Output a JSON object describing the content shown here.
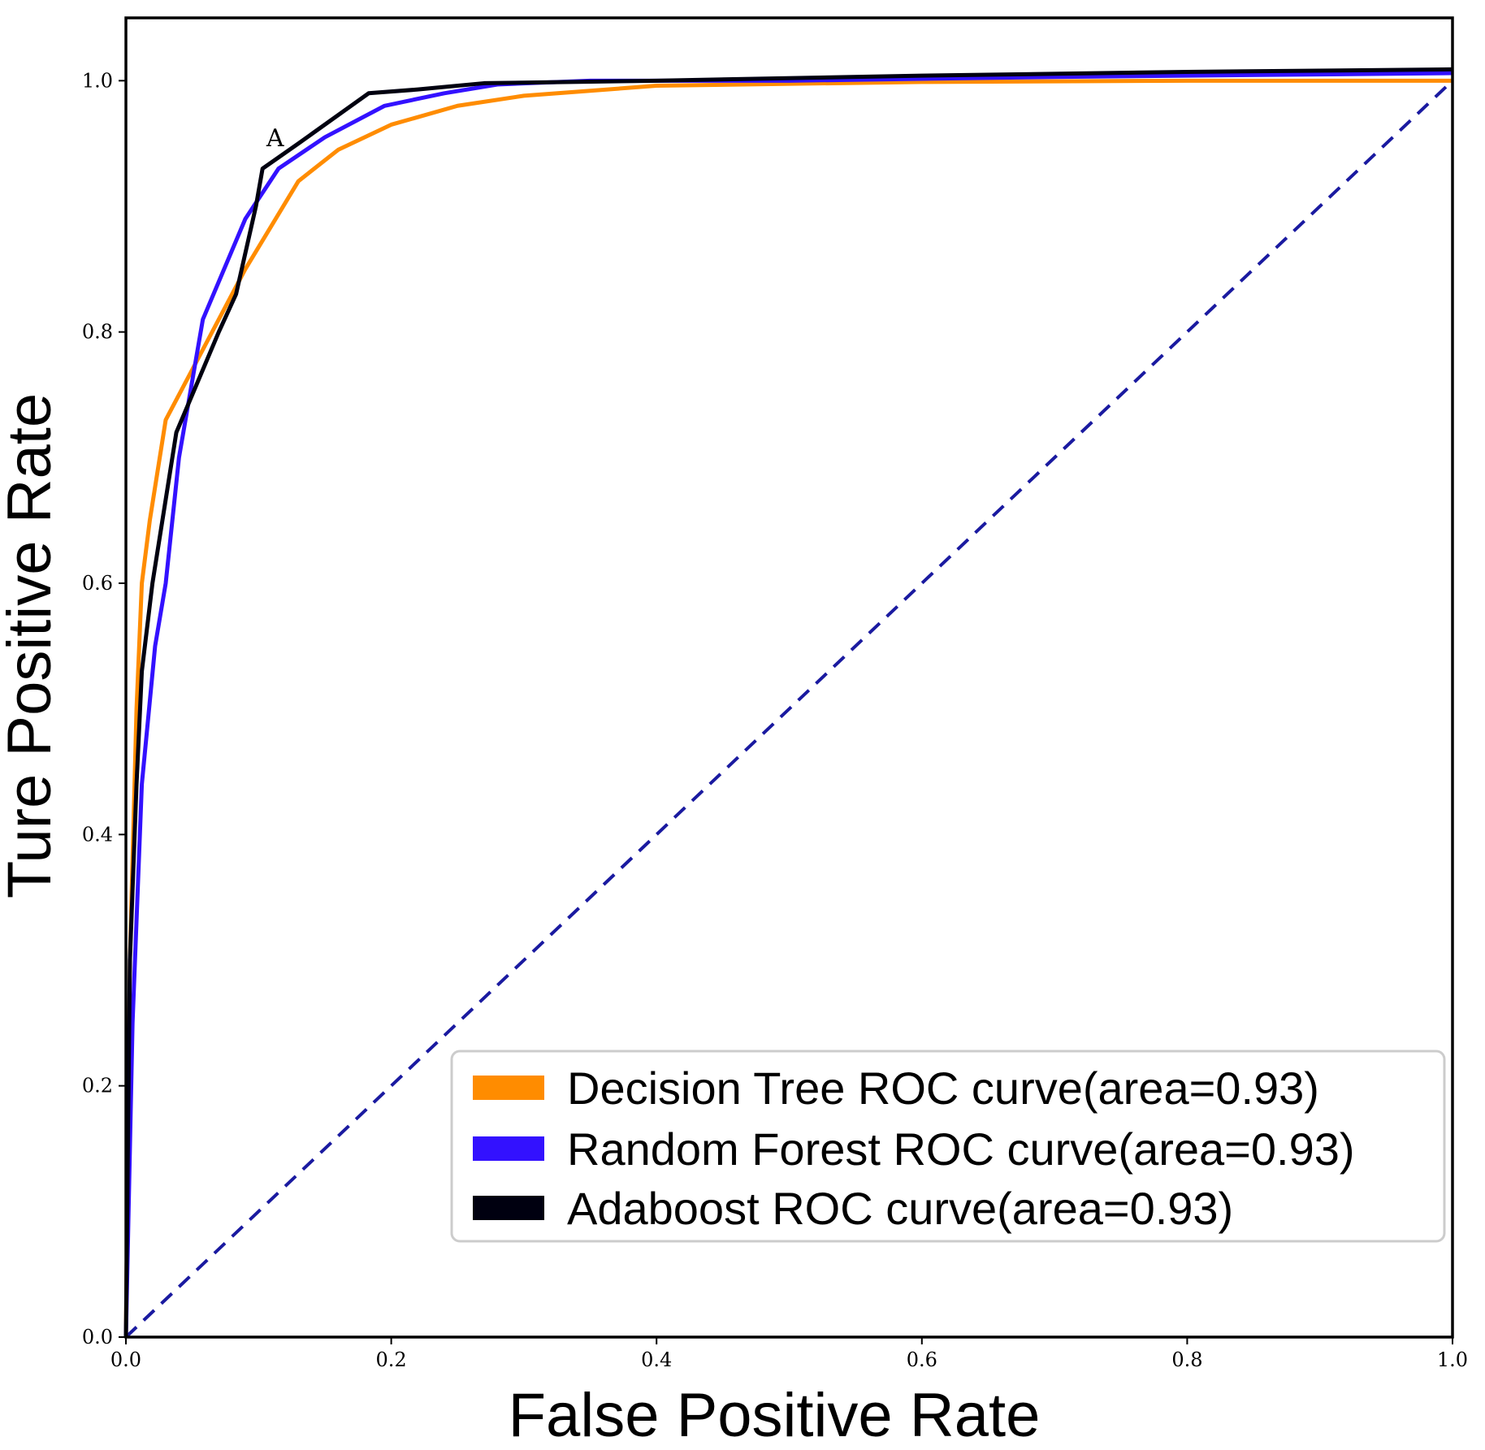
{
  "chart_data": {
    "type": "line",
    "title": "",
    "xlabel": "False Positive Rate",
    "ylabel": "Ture Positive Rate",
    "xlim": [
      0.0,
      1.0
    ],
    "ylim": [
      0.0,
      1.05
    ],
    "xticks": [
      "0.0",
      "0.2",
      "0.4",
      "0.6",
      "0.8",
      "1.0"
    ],
    "yticks": [
      "0.0",
      "0.2",
      "0.4",
      "0.6",
      "0.8",
      "1.0"
    ],
    "grid": false,
    "legend_position": "lower-right",
    "annotation": {
      "text": "A",
      "x": 0.112,
      "y": 0.94
    },
    "series": [
      {
        "name": "Decision Tree ROC curve(area=0.93)",
        "color": "#ff8c00",
        "style": "solid",
        "x": [
          0.0,
          0.003,
          0.008,
          0.012,
          0.018,
          0.03,
          0.06,
          0.09,
          0.13,
          0.16,
          0.2,
          0.25,
          0.3,
          0.4,
          0.6,
          0.8,
          1.0
        ],
        "y": [
          0.0,
          0.3,
          0.5,
          0.6,
          0.65,
          0.73,
          0.79,
          0.85,
          0.92,
          0.945,
          0.965,
          0.98,
          0.988,
          0.996,
          0.999,
          1.0,
          1.0
        ]
      },
      {
        "name": "Random Forest ROC curve(area=0.93)",
        "color": "#3311ff",
        "style": "solid",
        "x": [
          0.0,
          0.005,
          0.012,
          0.022,
          0.03,
          0.04,
          0.058,
          0.09,
          0.115,
          0.15,
          0.195,
          0.24,
          0.28,
          0.35,
          0.5,
          0.7,
          1.0
        ],
        "y": [
          0.0,
          0.25,
          0.44,
          0.55,
          0.6,
          0.7,
          0.81,
          0.89,
          0.93,
          0.955,
          0.98,
          0.99,
          0.997,
          1.0,
          1.0,
          1.003,
          1.006
        ]
      },
      {
        "name": "Adaboost ROC curve(area=0.93)",
        "color": "#000010",
        "style": "solid",
        "x": [
          0.0,
          0.003,
          0.008,
          0.012,
          0.02,
          0.038,
          0.05,
          0.07,
          0.083,
          0.098,
          0.103,
          0.13,
          0.183,
          0.22,
          0.27,
          0.4,
          0.6,
          0.8,
          1.0
        ],
        "y": [
          0.0,
          0.3,
          0.44,
          0.53,
          0.6,
          0.72,
          0.75,
          0.8,
          0.83,
          0.9,
          0.93,
          0.95,
          0.99,
          0.993,
          0.998,
          1.0,
          1.004,
          1.007,
          1.009
        ]
      },
      {
        "name": "chance diagonal",
        "color": "#1a1aa0",
        "style": "dashed",
        "x": [
          0.0,
          1.0
        ],
        "y": [
          0.0,
          1.0
        ]
      }
    ]
  }
}
